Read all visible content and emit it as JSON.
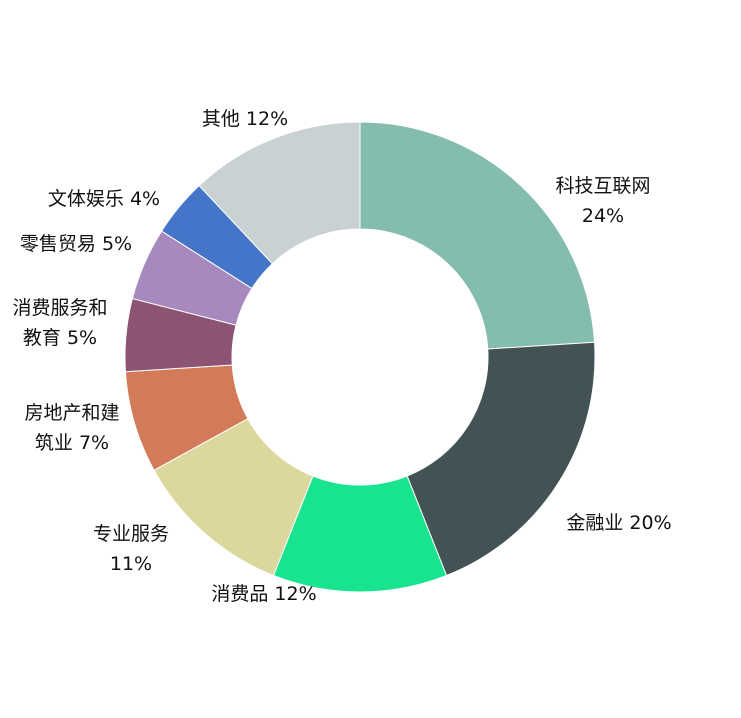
{
  "chart_data": {
    "type": "pie",
    "donut": true,
    "start": "top",
    "direction": "clockwise",
    "slices": [
      {
        "label": "科技互联网",
        "value": 24,
        "value_label": "24%",
        "color": "#84BCAD"
      },
      {
        "label": "金融业",
        "value": 20,
        "value_label": "20%",
        "color": "#435254"
      },
      {
        "label": "消费品",
        "value": 12,
        "value_label": "12%",
        "color": "#18E48F"
      },
      {
        "label": "专业服务",
        "value": 11,
        "value_label": "11%",
        "color": "#DAD89C"
      },
      {
        "label": "房地产和建筑业",
        "value": 7,
        "value_label": "7%",
        "color": "#D37A59"
      },
      {
        "label": "消费服务和教育",
        "value": 5,
        "value_label": "5%",
        "color": "#8C5472"
      },
      {
        "label": "零售贸易",
        "value": 5,
        "value_label": "5%",
        "color": "#A689BE"
      },
      {
        "label": "文体娱乐",
        "value": 4,
        "value_label": "4%",
        "color": "#4575C9"
      },
      {
        "label": "其他",
        "value": 12,
        "value_label": "12%",
        "color": "#C9D1D3"
      }
    ],
    "label_lines": [
      [
        "科技互联网",
        "24%"
      ],
      [
        "金融业 20%"
      ],
      [
        "消费品 12%"
      ],
      [
        "专业服务",
        "11%"
      ],
      [
        "房地产和建",
        "筑业 7%"
      ],
      [
        "消费服务和",
        "教育 5%"
      ],
      [
        "零售贸易 5%"
      ],
      [
        "文体娱乐 4%"
      ],
      [
        "其他 12%"
      ]
    ]
  }
}
